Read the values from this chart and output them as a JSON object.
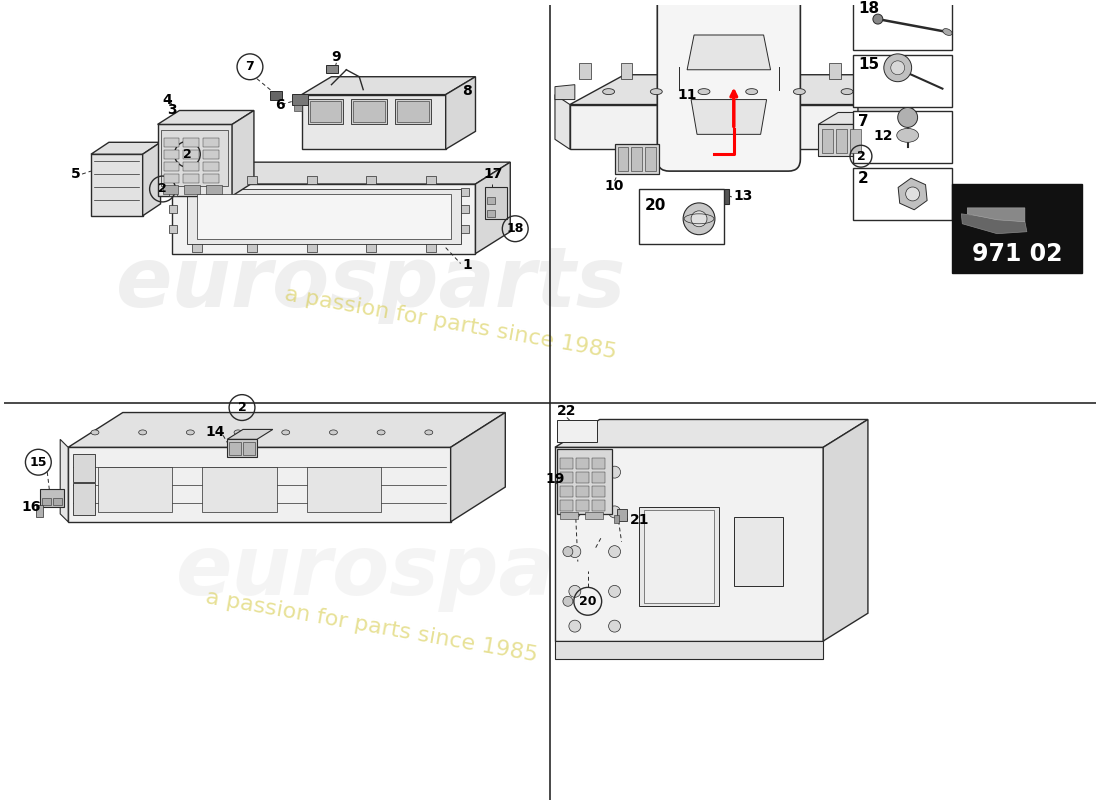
{
  "bg_color": "#ffffff",
  "lc": "#2a2a2a",
  "watermark1": "eurosparts",
  "watermark2": "a passion for parts since 1985",
  "part_number": "971 02"
}
